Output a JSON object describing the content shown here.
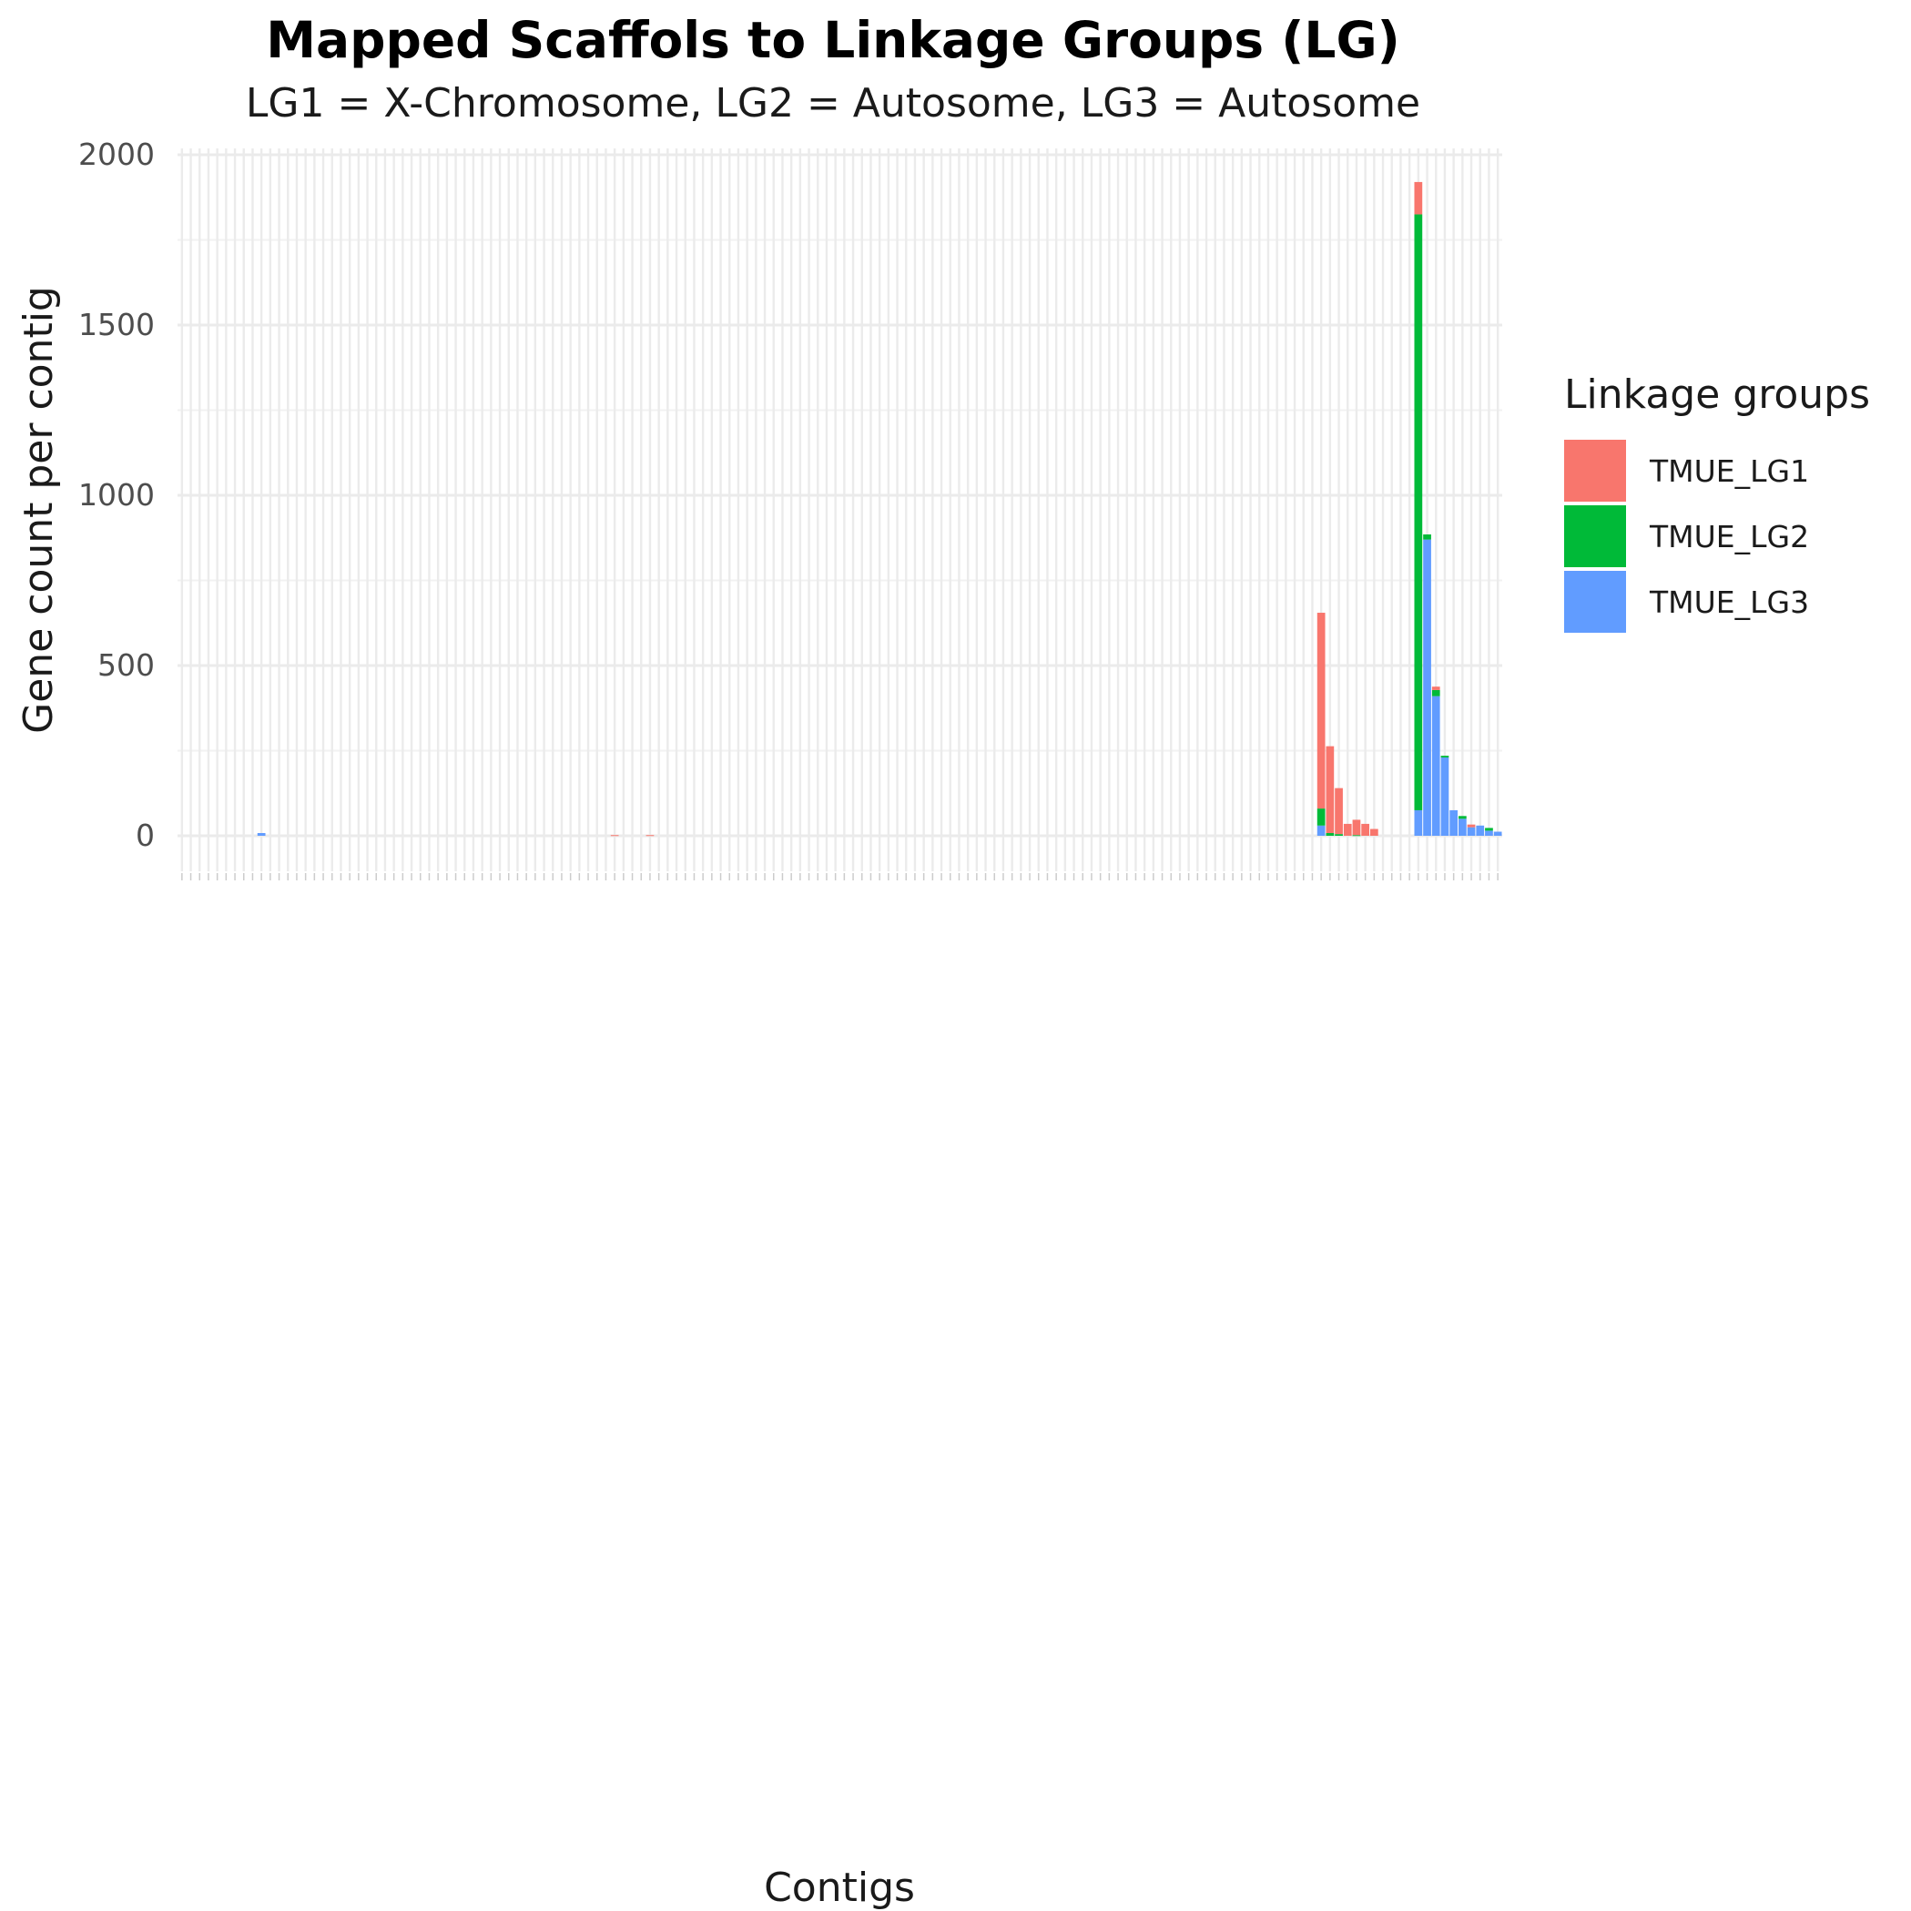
{
  "title": "Mapped Scaffols to Linkage Groups (LG)",
  "subtitle": "LG1 = X-Chromosome, LG2 = Autosome, LG3 = Autosome",
  "legend": {
    "title": "Linkage groups",
    "items": [
      {
        "label": "TMUE_LG1",
        "color": "#F8766D"
      },
      {
        "label": "TMUE_LG2",
        "color": "#00BA38"
      },
      {
        "label": "TMUE_LG3",
        "color": "#619CFF"
      }
    ]
  },
  "chart_data": {
    "type": "bar",
    "stacked": true,
    "title": "Mapped Scaffols to Linkage Groups (LG)",
    "subtitle": "LG1 = X-Chromosome, LG2 = Autosome, LG3 = Autosome",
    "xlabel": "Contigs",
    "ylabel": "Gene count per contig",
    "ylim": [
      -100,
      2000
    ],
    "yticks": [
      0,
      500,
      1000,
      1500,
      2000
    ],
    "grid": true,
    "legend_position": "right",
    "category_count": 150,
    "x_tick_labels_note": "150 vertical contig tick labels, overlapping and illegible",
    "series": [
      {
        "name": "TMUE_LG1",
        "color": "#F8766D",
        "values": [
          0,
          0,
          0,
          0,
          0,
          0,
          0,
          0,
          0,
          0,
          0,
          0,
          0,
          0,
          0,
          0,
          0,
          0,
          0,
          0,
          0,
          0,
          0,
          0,
          0,
          0,
          0,
          0,
          0,
          0,
          0,
          0,
          0,
          0,
          0,
          0,
          0,
          0,
          0,
          0,
          0,
          0,
          0,
          0,
          0,
          0,
          0,
          0,
          0,
          2,
          0,
          0,
          0,
          2,
          0,
          0,
          0,
          0,
          0,
          0,
          0,
          0,
          0,
          0,
          0,
          0,
          0,
          0,
          0,
          0,
          0,
          0,
          0,
          0,
          0,
          0,
          0,
          0,
          0,
          0,
          0,
          0,
          0,
          0,
          0,
          0,
          0,
          0,
          0,
          0,
          0,
          0,
          0,
          0,
          0,
          0,
          0,
          0,
          0,
          0,
          0,
          0,
          0,
          0,
          0,
          0,
          0,
          0,
          0,
          0,
          0,
          0,
          0,
          0,
          0,
          0,
          0,
          0,
          0,
          0,
          0,
          0,
          0,
          0,
          0,
          0,
          0,
          0,
          0,
          575,
          255,
          135,
          35,
          45,
          35,
          20,
          0,
          0,
          0,
          0,
          95,
          0,
          10,
          0,
          0,
          0,
          8,
          0,
          0,
          0,
          0,
          5,
          0,
          0
        ]
      },
      {
        "name": "TMUE_LG2",
        "color": "#00BA38",
        "values": [
          0,
          0,
          0,
          0,
          0,
          0,
          0,
          0,
          0,
          0,
          0,
          0,
          0,
          0,
          0,
          0,
          0,
          0,
          0,
          0,
          0,
          0,
          0,
          0,
          0,
          0,
          0,
          0,
          0,
          0,
          0,
          0,
          0,
          0,
          0,
          0,
          0,
          0,
          0,
          0,
          0,
          0,
          0,
          0,
          0,
          0,
          0,
          0,
          0,
          0,
          0,
          0,
          0,
          0,
          0,
          0,
          0,
          0,
          0,
          0,
          0,
          0,
          0,
          0,
          0,
          0,
          0,
          0,
          0,
          0,
          0,
          0,
          0,
          0,
          0,
          0,
          0,
          0,
          0,
          0,
          0,
          0,
          0,
          0,
          0,
          0,
          0,
          0,
          0,
          0,
          0,
          0,
          0,
          0,
          0,
          0,
          0,
          0,
          0,
          0,
          0,
          0,
          0,
          0,
          0,
          0,
          0,
          0,
          0,
          0,
          0,
          0,
          0,
          0,
          0,
          0,
          0,
          0,
          0,
          0,
          0,
          0,
          0,
          0,
          0,
          0,
          0,
          0,
          0,
          50,
          8,
          5,
          0,
          2,
          0,
          0,
          0,
          0,
          0,
          0,
          1750,
          15,
          18,
          5,
          0,
          8,
          0,
          0,
          8,
          0,
          0,
          10,
          0,
          0
        ]
      },
      {
        "name": "TMUE_LG3",
        "color": "#619CFF",
        "values": [
          0,
          0,
          0,
          0,
          0,
          0,
          0,
          0,
          0,
          8,
          0,
          0,
          0,
          0,
          0,
          0,
          0,
          0,
          0,
          0,
          0,
          0,
          0,
          0,
          0,
          0,
          0,
          0,
          0,
          0,
          0,
          0,
          0,
          0,
          0,
          0,
          0,
          0,
          0,
          0,
          0,
          0,
          0,
          0,
          0,
          0,
          0,
          0,
          0,
          0,
          0,
          0,
          0,
          0,
          0,
          0,
          0,
          0,
          0,
          0,
          0,
          0,
          0,
          0,
          0,
          0,
          0,
          0,
          0,
          0,
          0,
          0,
          0,
          0,
          0,
          0,
          0,
          0,
          0,
          0,
          0,
          0,
          0,
          0,
          0,
          0,
          0,
          0,
          0,
          0,
          0,
          0,
          0,
          0,
          0,
          0,
          0,
          0,
          0,
          0,
          0,
          0,
          0,
          0,
          0,
          0,
          0,
          0,
          0,
          0,
          0,
          0,
          0,
          0,
          0,
          0,
          0,
          0,
          0,
          0,
          0,
          0,
          0,
          0,
          0,
          0,
          0,
          0,
          0,
          30,
          0,
          0,
          0,
          0,
          0,
          0,
          0,
          0,
          0,
          0,
          75,
          870,
          410,
          230,
          75,
          50,
          25,
          30,
          15,
          12,
          0,
          0,
          0,
          0
        ]
      }
    ]
  }
}
